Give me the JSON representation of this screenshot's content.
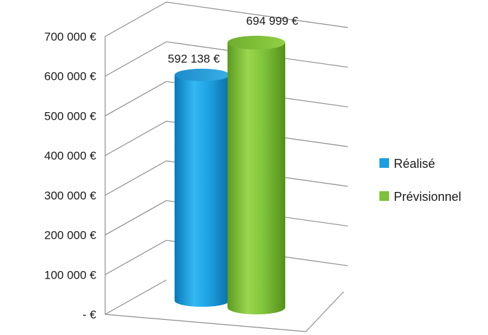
{
  "chart_data": {
    "type": "bar",
    "style": "3d-cylinder",
    "categories": [
      ""
    ],
    "series": [
      {
        "name": "Réalisé",
        "values": [
          592138
        ],
        "color": "#1a9fe0",
        "data_label": "592 138 €"
      },
      {
        "name": "Prévisionnel",
        "values": [
          694999
        ],
        "color": "#7dc238",
        "data_label": "694 999 €"
      }
    ],
    "ylim": [
      0,
      700000
    ],
    "yticks": [
      {
        "value": 0,
        "label": "- €"
      },
      {
        "value": 100000,
        "label": "100 000 €"
      },
      {
        "value": 200000,
        "label": "200 000 €"
      },
      {
        "value": 300000,
        "label": "300 000 €"
      },
      {
        "value": 400000,
        "label": "400 000 €"
      },
      {
        "value": 500000,
        "label": "500 000 €"
      },
      {
        "value": 600000,
        "label": "600 000 €"
      },
      {
        "value": 700000,
        "label": "700 000 €"
      }
    ],
    "grid": true,
    "legend_position": "right"
  }
}
